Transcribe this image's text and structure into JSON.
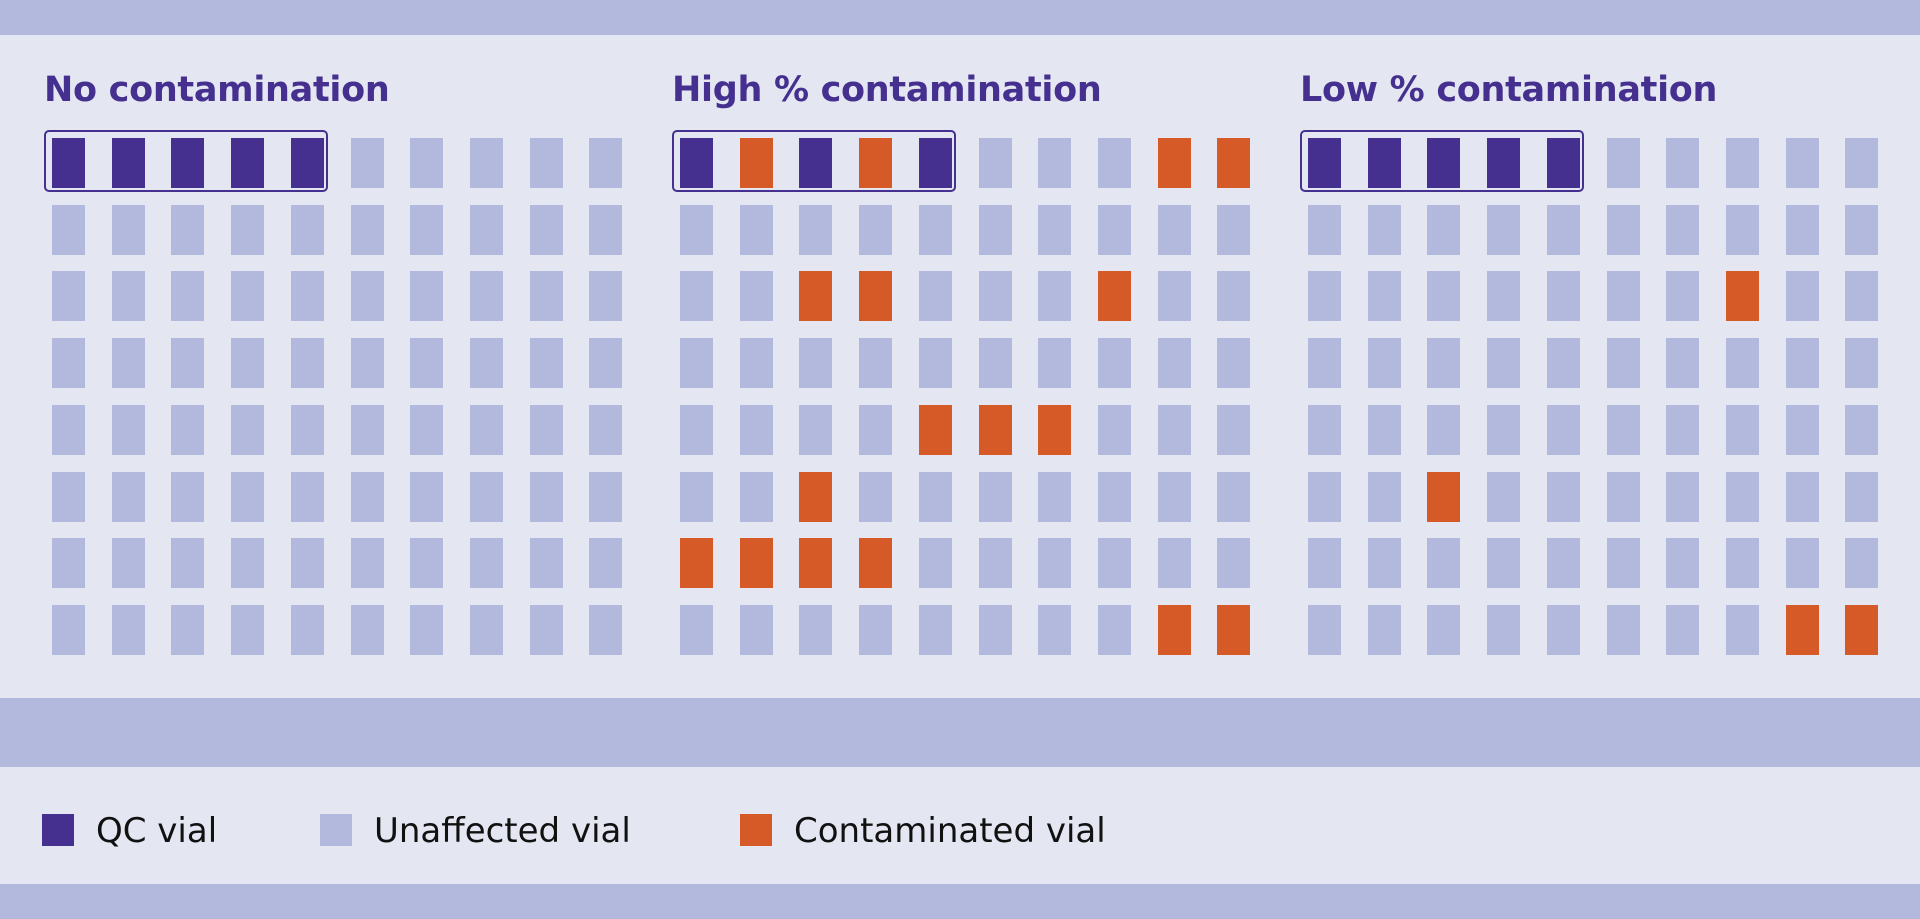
{
  "panels": [
    {
      "title": "No contamination",
      "grid": [
        [
          "qc",
          "qc",
          "qc",
          "qc",
          "qc",
          "unaffected",
          "unaffected",
          "unaffected",
          "unaffected",
          "unaffected"
        ],
        [
          "unaffected",
          "unaffected",
          "unaffected",
          "unaffected",
          "unaffected",
          "unaffected",
          "unaffected",
          "unaffected",
          "unaffected",
          "unaffected"
        ],
        [
          "unaffected",
          "unaffected",
          "unaffected",
          "unaffected",
          "unaffected",
          "unaffected",
          "unaffected",
          "unaffected",
          "unaffected",
          "unaffected"
        ],
        [
          "unaffected",
          "unaffected",
          "unaffected",
          "unaffected",
          "unaffected",
          "unaffected",
          "unaffected",
          "unaffected",
          "unaffected",
          "unaffected"
        ],
        [
          "unaffected",
          "unaffected",
          "unaffected",
          "unaffected",
          "unaffected",
          "unaffected",
          "unaffected",
          "unaffected",
          "unaffected",
          "unaffected"
        ],
        [
          "unaffected",
          "unaffected",
          "unaffected",
          "unaffected",
          "unaffected",
          "unaffected",
          "unaffected",
          "unaffected",
          "unaffected",
          "unaffected"
        ],
        [
          "unaffected",
          "unaffected",
          "unaffected",
          "unaffected",
          "unaffected",
          "unaffected",
          "unaffected",
          "unaffected",
          "unaffected",
          "unaffected"
        ],
        [
          "unaffected",
          "unaffected",
          "unaffected",
          "unaffected",
          "unaffected",
          "unaffected",
          "unaffected",
          "unaffected",
          "unaffected",
          "unaffected"
        ]
      ]
    },
    {
      "title": "High % contamination",
      "grid": [
        [
          "qc",
          "contaminated",
          "qc",
          "contaminated",
          "qc",
          "unaffected",
          "unaffected",
          "unaffected",
          "contaminated",
          "contaminated"
        ],
        [
          "unaffected",
          "unaffected",
          "unaffected",
          "unaffected",
          "unaffected",
          "unaffected",
          "unaffected",
          "unaffected",
          "unaffected",
          "unaffected"
        ],
        [
          "unaffected",
          "unaffected",
          "contaminated",
          "contaminated",
          "unaffected",
          "unaffected",
          "unaffected",
          "contaminated",
          "unaffected",
          "unaffected"
        ],
        [
          "unaffected",
          "unaffected",
          "unaffected",
          "unaffected",
          "unaffected",
          "unaffected",
          "unaffected",
          "unaffected",
          "unaffected",
          "unaffected"
        ],
        [
          "unaffected",
          "unaffected",
          "unaffected",
          "unaffected",
          "contaminated",
          "contaminated",
          "contaminated",
          "unaffected",
          "unaffected",
          "unaffected"
        ],
        [
          "unaffected",
          "unaffected",
          "contaminated",
          "unaffected",
          "unaffected",
          "unaffected",
          "unaffected",
          "unaffected",
          "unaffected",
          "unaffected"
        ],
        [
          "contaminated",
          "contaminated",
          "contaminated",
          "contaminated",
          "unaffected",
          "unaffected",
          "unaffected",
          "unaffected",
          "unaffected",
          "unaffected"
        ],
        [
          "unaffected",
          "unaffected",
          "unaffected",
          "unaffected",
          "unaffected",
          "unaffected",
          "unaffected",
          "unaffected",
          "contaminated",
          "contaminated"
        ]
      ]
    },
    {
      "title": "Low % contamination",
      "grid": [
        [
          "qc",
          "qc",
          "qc",
          "qc",
          "qc",
          "unaffected",
          "unaffected",
          "unaffected",
          "unaffected",
          "unaffected"
        ],
        [
          "unaffected",
          "unaffected",
          "unaffected",
          "unaffected",
          "unaffected",
          "unaffected",
          "unaffected",
          "unaffected",
          "unaffected",
          "unaffected"
        ],
        [
          "unaffected",
          "unaffected",
          "unaffected",
          "unaffected",
          "unaffected",
          "unaffected",
          "unaffected",
          "contaminated",
          "unaffected",
          "unaffected"
        ],
        [
          "unaffected",
          "unaffected",
          "unaffected",
          "unaffected",
          "unaffected",
          "unaffected",
          "unaffected",
          "unaffected",
          "unaffected",
          "unaffected"
        ],
        [
          "unaffected",
          "unaffected",
          "unaffected",
          "unaffected",
          "unaffected",
          "unaffected",
          "unaffected",
          "unaffected",
          "unaffected",
          "unaffected"
        ],
        [
          "unaffected",
          "unaffected",
          "contaminated",
          "unaffected",
          "unaffected",
          "unaffected",
          "unaffected",
          "unaffected",
          "unaffected",
          "unaffected"
        ],
        [
          "unaffected",
          "unaffected",
          "unaffected",
          "unaffected",
          "unaffected",
          "unaffected",
          "unaffected",
          "unaffected",
          "unaffected",
          "unaffected"
        ],
        [
          "unaffected",
          "unaffected",
          "unaffected",
          "unaffected",
          "unaffected",
          "unaffected",
          "unaffected",
          "unaffected",
          "contaminated",
          "contaminated"
        ]
      ]
    }
  ],
  "legend": [
    {
      "type": "qc",
      "label": "QC vial"
    },
    {
      "type": "unaffected",
      "label": "Unaffected vial"
    },
    {
      "type": "contaminated",
      "label": "Contaminated vial"
    }
  ],
  "colors": {
    "qc": "#45308f",
    "unaffected": "#b3b9dd",
    "contaminated": "#d65a27",
    "background": "#e4e6f2",
    "band": "#b3b9dd"
  }
}
